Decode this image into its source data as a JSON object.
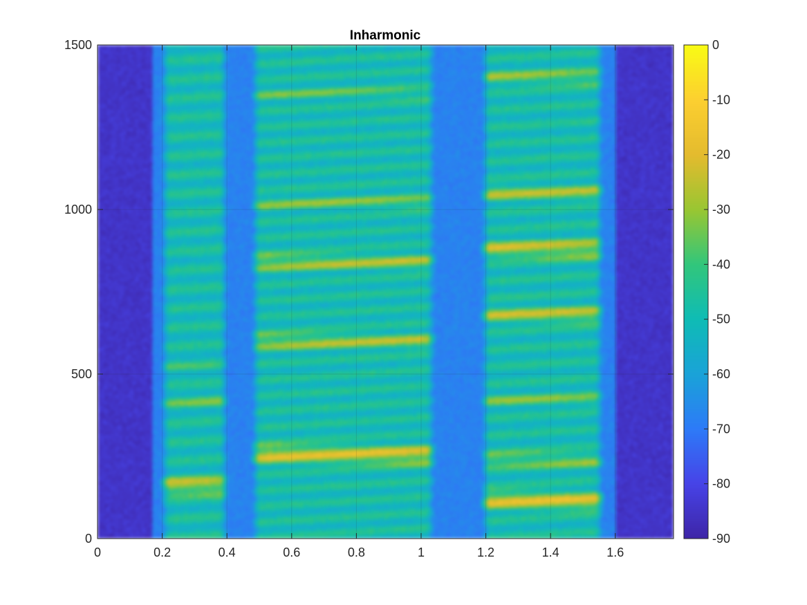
{
  "chart_data": {
    "type": "heatmap",
    "title": "Inharmonic",
    "xlabel": "",
    "ylabel": "",
    "xlim": [
      0,
      1.78
    ],
    "ylim": [
      0,
      1500
    ],
    "x_ticks": [
      0,
      0.2,
      0.4,
      0.6,
      0.8,
      1,
      1.2,
      1.4,
      1.6
    ],
    "x_tick_labels": [
      "0",
      "0.2",
      "0.4",
      "0.6",
      "0.8",
      "1",
      "1.2",
      "1.4",
      "1.6"
    ],
    "y_ticks": [
      0,
      500,
      1000,
      1500
    ],
    "y_tick_labels": [
      "0",
      "500",
      "1000",
      "1500"
    ],
    "grid": true,
    "colormap": "parula",
    "colorbar": {
      "range": [
        -90,
        0
      ],
      "ticks": [
        0,
        -10,
        -20,
        -30,
        -40,
        -50,
        -60,
        -70,
        -80,
        -90
      ],
      "tick_labels": [
        "0",
        "-10",
        "-20",
        "-30",
        "-40",
        "-50",
        "-60",
        "-70",
        "-80",
        "-90"
      ]
    },
    "segments": [
      {
        "x_start": 0.2,
        "x_end": 0.4,
        "f0": 60,
        "harmonic_spacing": 58,
        "strong_bands": [
          {
            "y": 160,
            "level": -18
          },
          {
            "y": 420,
            "level": -30
          },
          {
            "y": 520,
            "level": -36
          }
        ]
      },
      {
        "x_start": 0.48,
        "x_end": 1.04,
        "f0": 50,
        "harmonic_spacing": 48,
        "strong_bands": [
          {
            "y": 255,
            "level": -15
          },
          {
            "y": 600,
            "level": -22
          },
          {
            "y": 840,
            "level": -22
          },
          {
            "y": 1020,
            "level": -27
          },
          {
            "y": 1350,
            "level": -30
          }
        ]
      },
      {
        "x_start": 1.19,
        "x_end": 1.56,
        "f0": 55,
        "harmonic_spacing": 52,
        "strong_bands": [
          {
            "y": 115,
            "level": -15
          },
          {
            "y": 240,
            "level": -25
          },
          {
            "y": 420,
            "level": -28
          },
          {
            "y": 680,
            "level": -20
          },
          {
            "y": 880,
            "level": -18
          },
          {
            "y": 1050,
            "level": -22
          },
          {
            "y": 1400,
            "level": -25
          }
        ]
      }
    ],
    "background_level": -85
  },
  "colors": {
    "parula": [
      "#3e26a8",
      "#4744e8",
      "#2d7bf8",
      "#1aa3d8",
      "#0fbcb5",
      "#32c67c",
      "#99c632",
      "#e4bb2e",
      "#fccf30",
      "#f9fb15"
    ],
    "axis": "#262626",
    "grid": "#262626",
    "background": "#ffffff"
  }
}
